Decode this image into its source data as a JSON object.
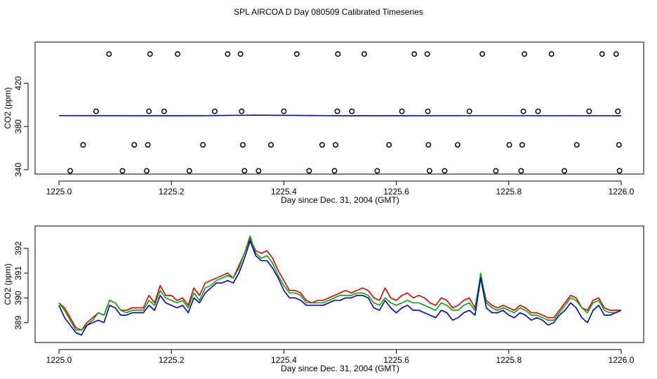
{
  "title": "SPL AIRCOA D  Day 080509  Calibrated Timeseries",
  "colors": {
    "red": "#dd0000",
    "green": "#00aa00",
    "blue": "#0000cc",
    "axis": "#000000"
  },
  "chart_data": [
    {
      "type": "scatter",
      "title": "",
      "xlabel": "Day since Dec. 31, 2004 (GMT)",
      "ylabel": "CO2 (ppm)",
      "xlim": [
        1225.0,
        1226.0
      ],
      "ylim": [
        336,
        458
      ],
      "xticks": [
        1225.0,
        1225.2,
        1225.4,
        1225.6,
        1225.8,
        1226.0
      ],
      "xtick_labels": [
        "1225.0",
        "1225.2",
        "1225.4",
        "1225.6",
        "1225.8",
        "1226.0"
      ],
      "yticks": [
        340,
        380,
        420
      ],
      "ytick_labels": [
        "340",
        "380",
        "420"
      ],
      "marker": "circle",
      "points": [
        {
          "x": 1225.089,
          "y": 447
        },
        {
          "x": 1225.162,
          "y": 447
        },
        {
          "x": 1225.211,
          "y": 447
        },
        {
          "x": 1225.3,
          "y": 447
        },
        {
          "x": 1225.323,
          "y": 447
        },
        {
          "x": 1225.423,
          "y": 447
        },
        {
          "x": 1225.496,
          "y": 447
        },
        {
          "x": 1225.543,
          "y": 447
        },
        {
          "x": 1225.632,
          "y": 447
        },
        {
          "x": 1225.655,
          "y": 447
        },
        {
          "x": 1225.753,
          "y": 447
        },
        {
          "x": 1225.828,
          "y": 447
        },
        {
          "x": 1225.876,
          "y": 447
        },
        {
          "x": 1225.966,
          "y": 447
        },
        {
          "x": 1225.991,
          "y": 447
        },
        {
          "x": 1225.066,
          "y": 394
        },
        {
          "x": 1225.16,
          "y": 394
        },
        {
          "x": 1225.187,
          "y": 394
        },
        {
          "x": 1225.277,
          "y": 394
        },
        {
          "x": 1225.325,
          "y": 394
        },
        {
          "x": 1225.4,
          "y": 394
        },
        {
          "x": 1225.495,
          "y": 394
        },
        {
          "x": 1225.521,
          "y": 394
        },
        {
          "x": 1225.61,
          "y": 394
        },
        {
          "x": 1225.656,
          "y": 394
        },
        {
          "x": 1225.73,
          "y": 394
        },
        {
          "x": 1225.826,
          "y": 394
        },
        {
          "x": 1225.852,
          "y": 394
        },
        {
          "x": 1225.943,
          "y": 394
        },
        {
          "x": 1225.994,
          "y": 394
        },
        {
          "x": 1225.043,
          "y": 363
        },
        {
          "x": 1225.134,
          "y": 363
        },
        {
          "x": 1225.158,
          "y": 363
        },
        {
          "x": 1225.256,
          "y": 363
        },
        {
          "x": 1225.327,
          "y": 363
        },
        {
          "x": 1225.377,
          "y": 363
        },
        {
          "x": 1225.468,
          "y": 363
        },
        {
          "x": 1225.492,
          "y": 363
        },
        {
          "x": 1225.587,
          "y": 363
        },
        {
          "x": 1225.657,
          "y": 363
        },
        {
          "x": 1225.709,
          "y": 363
        },
        {
          "x": 1225.801,
          "y": 363
        },
        {
          "x": 1225.824,
          "y": 363
        },
        {
          "x": 1225.921,
          "y": 363
        },
        {
          "x": 1225.996,
          "y": 363
        },
        {
          "x": 1225.02,
          "y": 339
        },
        {
          "x": 1225.113,
          "y": 339
        },
        {
          "x": 1225.156,
          "y": 339
        },
        {
          "x": 1225.232,
          "y": 339
        },
        {
          "x": 1225.33,
          "y": 339
        },
        {
          "x": 1225.355,
          "y": 339
        },
        {
          "x": 1225.445,
          "y": 339
        },
        {
          "x": 1225.49,
          "y": 339
        },
        {
          "x": 1225.566,
          "y": 339
        },
        {
          "x": 1225.659,
          "y": 339
        },
        {
          "x": 1225.686,
          "y": 339
        },
        {
          "x": 1225.777,
          "y": 339
        },
        {
          "x": 1225.822,
          "y": 339
        },
        {
          "x": 1225.899,
          "y": 339
        },
        {
          "x": 1225.997,
          "y": 339
        }
      ],
      "series": [
        {
          "name": "red",
          "x": [
            1225.0,
            1225.25,
            1225.35,
            1225.5,
            1225.75,
            1226.0
          ],
          "values": [
            390.2,
            390.0,
            390.6,
            390.1,
            390.0,
            390.0
          ]
        },
        {
          "name": "green",
          "x": [
            1225.0,
            1225.25,
            1225.35,
            1225.5,
            1225.75,
            1226.0
          ],
          "values": [
            390.0,
            390.2,
            390.4,
            389.9,
            390.1,
            389.9
          ]
        },
        {
          "name": "blue",
          "x": [
            1225.0,
            1225.25,
            1225.35,
            1225.5,
            1225.75,
            1226.0
          ],
          "values": [
            389.9,
            389.8,
            390.5,
            389.8,
            389.9,
            389.8
          ]
        }
      ]
    },
    {
      "type": "line",
      "title": "",
      "xlabel": "Day since Dec. 31, 2004 (GMT)",
      "ylabel": "CO2 (ppm)",
      "xlim": [
        1225.0,
        1226.0
      ],
      "ylim": [
        388.2,
        392.9
      ],
      "xticks": [
        1225.0,
        1225.2,
        1225.4,
        1225.6,
        1225.8,
        1226.0
      ],
      "xtick_labels": [
        "1225.0",
        "1225.2",
        "1225.4",
        "1225.6",
        "1225.8",
        "1226.0"
      ],
      "yticks": [
        389,
        390,
        391,
        392
      ],
      "ytick_labels": [
        "389",
        "390",
        "391",
        "392"
      ],
      "series": [
        {
          "name": "red",
          "x": [
            1225.0,
            1225.01,
            1225.02,
            1225.03,
            1225.04,
            1225.05,
            1225.06,
            1225.07,
            1225.08,
            1225.09,
            1225.1,
            1225.11,
            1225.12,
            1225.13,
            1225.14,
            1225.15,
            1225.16,
            1225.17,
            1225.18,
            1225.19,
            1225.2,
            1225.21,
            1225.22,
            1225.23,
            1225.24,
            1225.25,
            1225.26,
            1225.27,
            1225.28,
            1225.29,
            1225.3,
            1225.31,
            1225.32,
            1225.33,
            1225.34,
            1225.35,
            1225.36,
            1225.37,
            1225.38,
            1225.39,
            1225.4,
            1225.41,
            1225.42,
            1225.43,
            1225.44,
            1225.45,
            1225.46,
            1225.47,
            1225.48,
            1225.49,
            1225.5,
            1225.51,
            1225.52,
            1225.53,
            1225.54,
            1225.55,
            1225.56,
            1225.57,
            1225.58,
            1225.59,
            1225.6,
            1225.61,
            1225.62,
            1225.63,
            1225.64,
            1225.65,
            1225.66,
            1225.67,
            1225.68,
            1225.69,
            1225.7,
            1225.71,
            1225.72,
            1225.73,
            1225.74,
            1225.75,
            1225.76,
            1225.77,
            1225.78,
            1225.79,
            1225.8,
            1225.81,
            1225.82,
            1225.83,
            1225.84,
            1225.85,
            1225.86,
            1225.87,
            1225.88,
            1225.89,
            1225.9,
            1225.91,
            1225.92,
            1225.93,
            1225.94,
            1225.95,
            1225.96,
            1225.97,
            1225.98,
            1225.99,
            1226.0
          ],
          "values": [
            389.8,
            389.6,
            389.2,
            388.8,
            388.7,
            389.0,
            389.2,
            389.4,
            389.3,
            389.9,
            389.8,
            389.5,
            389.5,
            389.6,
            389.6,
            389.6,
            390.1,
            389.8,
            390.5,
            390.1,
            390.1,
            389.9,
            390.0,
            389.7,
            390.4,
            390.1,
            390.6,
            390.7,
            390.8,
            390.9,
            391.0,
            390.8,
            391.3,
            391.8,
            392.4,
            391.9,
            391.8,
            391.9,
            391.6,
            391.1,
            390.7,
            390.3,
            390.3,
            390.2,
            389.9,
            389.8,
            389.9,
            389.9,
            390.0,
            390.1,
            390.2,
            390.3,
            390.2,
            390.3,
            390.4,
            390.3,
            390.0,
            389.9,
            390.4,
            390.0,
            389.9,
            390.1,
            390.2,
            390.0,
            390.1,
            390.0,
            389.8,
            389.7,
            390.0,
            389.9,
            389.6,
            389.7,
            389.9,
            390.0,
            389.6,
            390.9,
            389.9,
            389.7,
            389.6,
            389.7,
            389.6,
            389.5,
            389.7,
            389.6,
            389.4,
            389.4,
            389.3,
            389.2,
            389.2,
            389.5,
            389.8,
            390.1,
            390.0,
            389.6,
            389.5,
            389.9,
            390.0,
            389.6,
            389.5,
            389.5,
            389.5
          ]
        },
        {
          "name": "green",
          "x": [
            1225.0,
            1225.01,
            1225.02,
            1225.03,
            1225.04,
            1225.05,
            1225.06,
            1225.07,
            1225.08,
            1225.09,
            1225.1,
            1225.11,
            1225.12,
            1225.13,
            1225.14,
            1225.15,
            1225.16,
            1225.17,
            1225.18,
            1225.19,
            1225.2,
            1225.21,
            1225.22,
            1225.23,
            1225.24,
            1225.25,
            1225.26,
            1225.27,
            1225.28,
            1225.29,
            1225.3,
            1225.31,
            1225.32,
            1225.33,
            1225.34,
            1225.35,
            1225.36,
            1225.37,
            1225.38,
            1225.39,
            1225.4,
            1225.41,
            1225.42,
            1225.43,
            1225.44,
            1225.45,
            1225.46,
            1225.47,
            1225.48,
            1225.49,
            1225.5,
            1225.51,
            1225.52,
            1225.53,
            1225.54,
            1225.55,
            1225.56,
            1225.57,
            1225.58,
            1225.59,
            1225.6,
            1225.61,
            1225.62,
            1225.63,
            1225.64,
            1225.65,
            1225.66,
            1225.67,
            1225.68,
            1225.69,
            1225.7,
            1225.71,
            1225.72,
            1225.73,
            1225.74,
            1225.75,
            1225.76,
            1225.77,
            1225.78,
            1225.79,
            1225.8,
            1225.81,
            1225.82,
            1225.83,
            1225.84,
            1225.85,
            1225.86,
            1225.87,
            1225.88,
            1225.89,
            1225.9,
            1225.91,
            1225.92,
            1225.93,
            1225.94,
            1225.95,
            1225.96,
            1225.97,
            1225.98,
            1225.99,
            1226.0
          ],
          "values": [
            389.8,
            389.5,
            389.1,
            388.7,
            388.7,
            388.9,
            389.1,
            389.4,
            389.3,
            389.9,
            389.8,
            389.5,
            389.4,
            389.5,
            389.5,
            389.5,
            389.9,
            389.7,
            390.3,
            390.0,
            389.9,
            389.8,
            389.9,
            389.6,
            390.2,
            389.9,
            390.4,
            390.5,
            390.7,
            390.8,
            390.9,
            390.8,
            391.2,
            391.8,
            392.5,
            391.8,
            391.6,
            391.7,
            391.4,
            390.9,
            390.5,
            390.2,
            390.2,
            390.1,
            389.8,
            389.8,
            389.8,
            389.8,
            389.9,
            390.0,
            390.1,
            390.1,
            390.1,
            390.2,
            390.2,
            390.1,
            389.8,
            389.7,
            390.0,
            389.8,
            389.7,
            389.8,
            389.9,
            389.8,
            389.8,
            389.7,
            389.6,
            389.5,
            389.8,
            389.7,
            389.5,
            389.5,
            389.7,
            389.8,
            389.5,
            391.0,
            389.8,
            389.6,
            389.5,
            389.6,
            389.5,
            389.4,
            389.6,
            389.5,
            389.3,
            389.3,
            389.2,
            389.1,
            389.1,
            389.4,
            389.7,
            390.0,
            389.9,
            389.6,
            389.4,
            389.8,
            389.9,
            389.5,
            389.4,
            389.4,
            389.5
          ]
        },
        {
          "name": "blue",
          "x": [
            1225.0,
            1225.01,
            1225.02,
            1225.03,
            1225.04,
            1225.05,
            1225.06,
            1225.07,
            1225.08,
            1225.09,
            1225.1,
            1225.11,
            1225.12,
            1225.13,
            1225.14,
            1225.15,
            1225.16,
            1225.17,
            1225.18,
            1225.19,
            1225.2,
            1225.21,
            1225.22,
            1225.23,
            1225.24,
            1225.25,
            1225.26,
            1225.27,
            1225.28,
            1225.29,
            1225.3,
            1225.31,
            1225.32,
            1225.33,
            1225.34,
            1225.35,
            1225.36,
            1225.37,
            1225.38,
            1225.39,
            1225.4,
            1225.41,
            1225.42,
            1225.43,
            1225.44,
            1225.45,
            1225.46,
            1225.47,
            1225.48,
            1225.49,
            1225.5,
            1225.51,
            1225.52,
            1225.53,
            1225.54,
            1225.55,
            1225.56,
            1225.57,
            1225.58,
            1225.59,
            1225.6,
            1225.61,
            1225.62,
            1225.63,
            1225.64,
            1225.65,
            1225.66,
            1225.67,
            1225.68,
            1225.69,
            1225.7,
            1225.71,
            1225.72,
            1225.73,
            1225.74,
            1225.75,
            1225.76,
            1225.77,
            1225.78,
            1225.79,
            1225.8,
            1225.81,
            1225.82,
            1225.83,
            1225.84,
            1225.85,
            1225.86,
            1225.87,
            1225.88,
            1225.89,
            1225.9,
            1225.91,
            1225.92,
            1225.93,
            1225.94,
            1225.95,
            1225.96,
            1225.97,
            1225.98,
            1225.99,
            1226.0
          ],
          "values": [
            389.7,
            389.2,
            388.9,
            388.6,
            388.5,
            388.9,
            389.0,
            389.1,
            389.0,
            389.7,
            389.6,
            389.3,
            389.3,
            389.4,
            389.4,
            389.4,
            389.7,
            389.5,
            390.1,
            389.8,
            389.7,
            389.6,
            389.7,
            389.4,
            390.0,
            389.8,
            390.2,
            390.4,
            390.6,
            390.6,
            390.7,
            390.6,
            391.0,
            391.6,
            392.3,
            391.7,
            391.5,
            391.5,
            391.2,
            390.8,
            390.3,
            390.0,
            390.0,
            389.9,
            389.7,
            389.7,
            389.7,
            389.7,
            389.8,
            389.9,
            389.9,
            390.0,
            390.0,
            390.1,
            390.1,
            390.0,
            389.6,
            389.5,
            389.9,
            389.6,
            389.4,
            389.6,
            389.7,
            389.5,
            389.5,
            389.4,
            389.3,
            389.2,
            389.5,
            389.4,
            389.1,
            389.2,
            389.4,
            389.5,
            389.3,
            390.8,
            389.6,
            389.4,
            389.4,
            389.5,
            389.3,
            389.2,
            389.4,
            389.3,
            389.1,
            389.2,
            389.1,
            388.9,
            389.0,
            389.3,
            389.5,
            389.8,
            389.6,
            389.2,
            389.0,
            389.5,
            389.7,
            389.3,
            389.3,
            389.4,
            389.5
          ]
        }
      ]
    }
  ]
}
